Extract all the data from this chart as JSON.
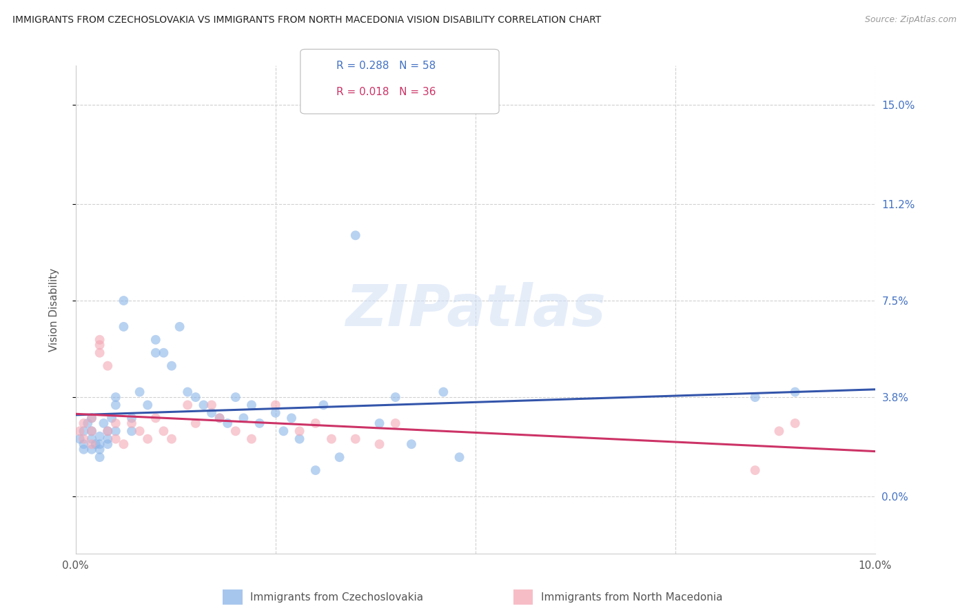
{
  "title": "IMMIGRANTS FROM CZECHOSLOVAKIA VS IMMIGRANTS FROM NORTH MACEDONIA VISION DISABILITY CORRELATION CHART",
  "source": "Source: ZipAtlas.com",
  "ylabel": "Vision Disability",
  "xlim": [
    0.0,
    0.1
  ],
  "ylim": [
    -0.022,
    0.165
  ],
  "ytick_vals": [
    0.0,
    0.038,
    0.075,
    0.112,
    0.15
  ],
  "ytick_labels_right": [
    "0.0%",
    "3.8%",
    "7.5%",
    "11.2%",
    "15.0%"
  ],
  "xtick_vals": [
    0.0,
    0.025,
    0.05,
    0.075,
    0.1
  ],
  "xtick_labels": [
    "0.0%",
    "",
    "",
    "",
    "10.0%"
  ],
  "legend_R1": "R = 0.288",
  "legend_N1": "N = 58",
  "legend_R2": "R = 0.018",
  "legend_N2": "N = 36",
  "color_czech": "#8ab4e8",
  "color_mac": "#f4a7b4",
  "line_color_czech": "#3355aa",
  "line_color_mac": "#cc3366",
  "watermark_text": "ZIPatlas",
  "background_color": "#ffffff",
  "grid_color": "#d0d0d0",
  "scatter_alpha": 0.6,
  "scatter_size": 100,
  "label_czech": "Immigrants from Czechoslovakia",
  "label_mac": "Immigrants from North Macedonia",
  "czech_x": [
    0.0005,
    0.001,
    0.001,
    0.001,
    0.0015,
    0.002,
    0.002,
    0.002,
    0.002,
    0.0025,
    0.003,
    0.003,
    0.003,
    0.003,
    0.0035,
    0.004,
    0.004,
    0.004,
    0.0045,
    0.005,
    0.005,
    0.005,
    0.006,
    0.006,
    0.007,
    0.007,
    0.008,
    0.009,
    0.01,
    0.01,
    0.011,
    0.012,
    0.013,
    0.014,
    0.015,
    0.016,
    0.017,
    0.018,
    0.019,
    0.02,
    0.021,
    0.022,
    0.023,
    0.025,
    0.026,
    0.027,
    0.028,
    0.03,
    0.031,
    0.033,
    0.035,
    0.038,
    0.04,
    0.042,
    0.046,
    0.048,
    0.085,
    0.09
  ],
  "czech_y": [
    0.022,
    0.025,
    0.02,
    0.018,
    0.028,
    0.022,
    0.025,
    0.03,
    0.018,
    0.02,
    0.023,
    0.018,
    0.015,
    0.02,
    0.028,
    0.025,
    0.022,
    0.02,
    0.03,
    0.035,
    0.038,
    0.025,
    0.075,
    0.065,
    0.03,
    0.025,
    0.04,
    0.035,
    0.06,
    0.055,
    0.055,
    0.05,
    0.065,
    0.04,
    0.038,
    0.035,
    0.032,
    0.03,
    0.028,
    0.038,
    0.03,
    0.035,
    0.028,
    0.032,
    0.025,
    0.03,
    0.022,
    0.01,
    0.035,
    0.015,
    0.1,
    0.028,
    0.038,
    0.02,
    0.04,
    0.015,
    0.038,
    0.04
  ],
  "mac_x": [
    0.0005,
    0.001,
    0.001,
    0.002,
    0.002,
    0.002,
    0.003,
    0.003,
    0.003,
    0.004,
    0.004,
    0.005,
    0.005,
    0.006,
    0.007,
    0.008,
    0.009,
    0.01,
    0.011,
    0.012,
    0.014,
    0.015,
    0.017,
    0.018,
    0.02,
    0.022,
    0.025,
    0.028,
    0.03,
    0.032,
    0.035,
    0.038,
    0.04,
    0.085,
    0.088,
    0.09
  ],
  "mac_y": [
    0.025,
    0.022,
    0.028,
    0.03,
    0.025,
    0.02,
    0.055,
    0.06,
    0.058,
    0.05,
    0.025,
    0.028,
    0.022,
    0.02,
    0.028,
    0.025,
    0.022,
    0.03,
    0.025,
    0.022,
    0.035,
    0.028,
    0.035,
    0.03,
    0.025,
    0.022,
    0.035,
    0.025,
    0.028,
    0.022,
    0.022,
    0.02,
    0.028,
    0.01,
    0.025,
    0.028
  ]
}
